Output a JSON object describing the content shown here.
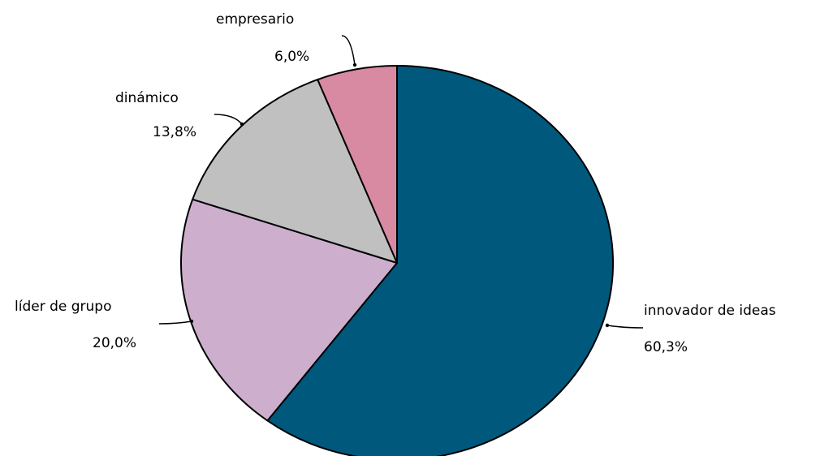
{
  "chart_data": {
    "type": "pie",
    "title": "",
    "slices": [
      {
        "label": "innovador de ideas",
        "value": 60.3,
        "value_label": "60,3%",
        "color": "#00587d"
      },
      {
        "label": "líder de grupo",
        "value": 20.0,
        "value_label": "20,0%",
        "color": "#cdafcd"
      },
      {
        "label": "dinámico",
        "value": 13.8,
        "value_label": "13,8%",
        "color": "#c0c0c0"
      },
      {
        "label": "empresario",
        "value": 6.0,
        "value_label": "6,0%",
        "color": "#d98aa3"
      }
    ],
    "start": "12 o'clock",
    "direction": "clockwise",
    "legend": "none",
    "labels": "outside with arrows"
  }
}
